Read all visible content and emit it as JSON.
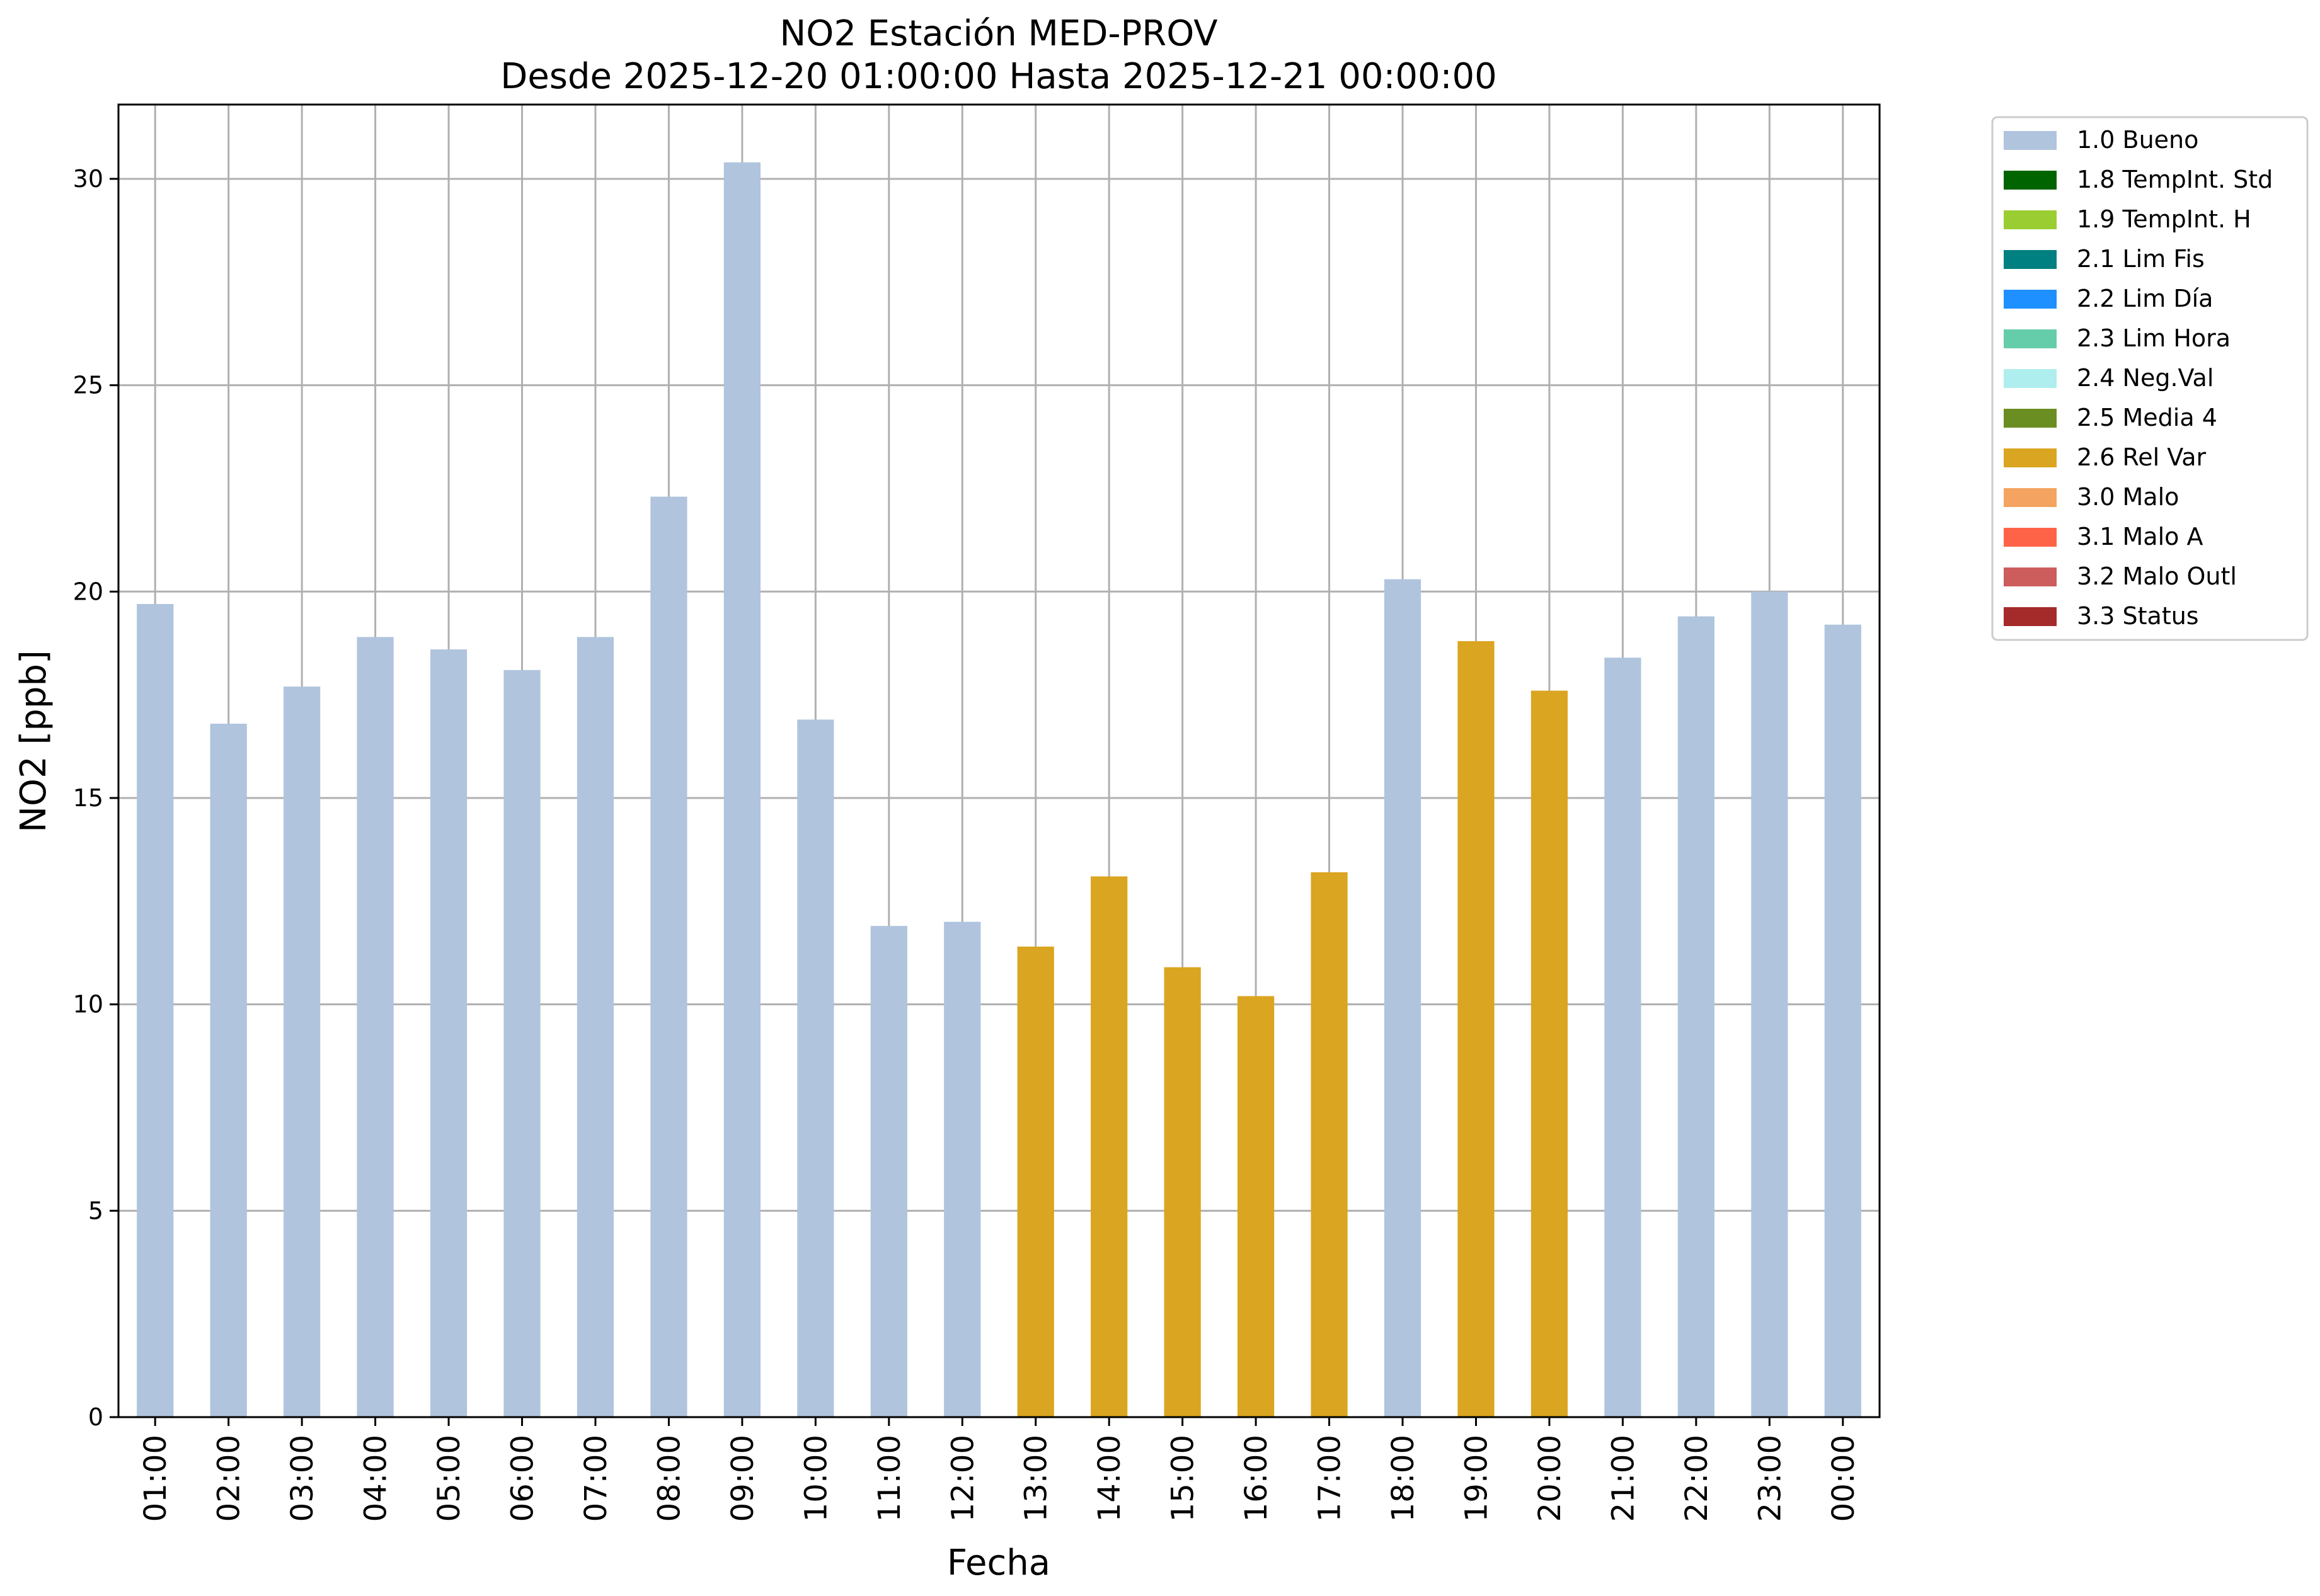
{
  "chart_data": {
    "type": "bar",
    "title": "NO2 Estación MED-PROV",
    "subtitle": "Desde 2025-12-20 01:00:00 Hasta 2025-12-21 00:00:00",
    "xlabel": "Fecha",
    "ylabel": "NO2 [ppb]",
    "ylim": [
      0,
      31.8
    ],
    "yticks": [
      0,
      5,
      10,
      15,
      20,
      25,
      30
    ],
    "grid": true,
    "legend_position": "outside-right-top",
    "categories": [
      "01:00",
      "02:00",
      "03:00",
      "04:00",
      "05:00",
      "06:00",
      "07:00",
      "08:00",
      "09:00",
      "10:00",
      "11:00",
      "12:00",
      "13:00",
      "14:00",
      "15:00",
      "16:00",
      "17:00",
      "18:00",
      "19:00",
      "20:00",
      "21:00",
      "22:00",
      "23:00",
      "00:00"
    ],
    "values": [
      19.7,
      16.8,
      17.7,
      18.9,
      18.6,
      18.1,
      18.9,
      22.3,
      30.4,
      16.9,
      11.9,
      12.0,
      11.4,
      13.1,
      10.9,
      10.2,
      13.2,
      20.3,
      18.8,
      17.6,
      18.4,
      19.4,
      20.0,
      19.2
    ],
    "flags": [
      "1.0 Bueno",
      "1.0 Bueno",
      "1.0 Bueno",
      "1.0 Bueno",
      "1.0 Bueno",
      "1.0 Bueno",
      "1.0 Bueno",
      "1.0 Bueno",
      "1.0 Bueno",
      "1.0 Bueno",
      "1.0 Bueno",
      "1.0 Bueno",
      "2.6 Rel Var",
      "2.6 Rel Var",
      "2.6 Rel Var",
      "2.6 Rel Var",
      "2.6 Rel Var",
      "1.0 Bueno",
      "2.6 Rel Var",
      "2.6 Rel Var",
      "1.0 Bueno",
      "1.0 Bueno",
      "1.0 Bueno",
      "1.0 Bueno"
    ],
    "legend": [
      {
        "label": "1.0 Bueno",
        "color": "#b0c4de"
      },
      {
        "label": "1.8 TempInt. Std",
        "color": "#006400"
      },
      {
        "label": "1.9 TempInt. H",
        "color": "#9acd32"
      },
      {
        "label": "2.1 Lim Fis",
        "color": "#008080"
      },
      {
        "label": "2.2 Lim Día",
        "color": "#1e90ff"
      },
      {
        "label": "2.3 Lim Hora",
        "color": "#66cdaa"
      },
      {
        "label": "2.4 Neg.Val",
        "color": "#afeeee"
      },
      {
        "label": "2.5 Media 4",
        "color": "#6b8e23"
      },
      {
        "label": "2.6 Rel Var",
        "color": "#daa520"
      },
      {
        "label": "3.0 Malo",
        "color": "#f4a460"
      },
      {
        "label": "3.1 Malo A",
        "color": "#ff6347"
      },
      {
        "label": "3.2 Malo Outl",
        "color": "#cd5c5c"
      },
      {
        "label": "3.3 Status",
        "color": "#a52a2a"
      }
    ]
  }
}
